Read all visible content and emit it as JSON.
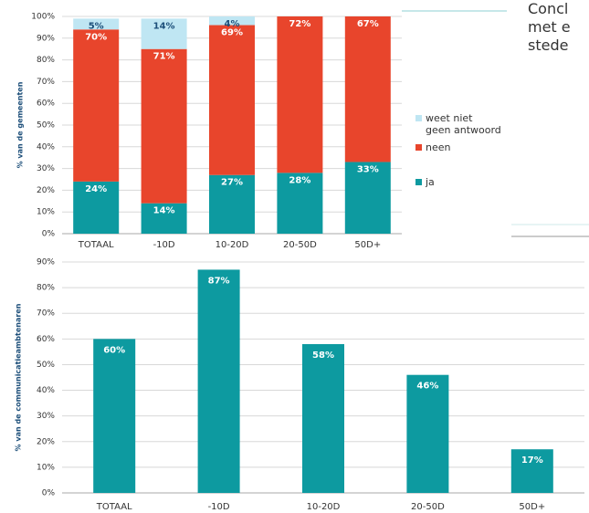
{
  "side_text": [
    "Concl",
    "met e",
    "stede"
  ],
  "chart_data": [
    {
      "type": "stacked_bar",
      "ylabel": "% van de gemeenten",
      "categories": [
        "TOTAAL",
        "-10D",
        "10-20D",
        "20-50D",
        "50D+"
      ],
      "series": [
        {
          "name": "ja",
          "color": "#0d9aa0",
          "label_color": "#ffffff",
          "values": [
            24,
            14,
            27,
            28,
            33
          ],
          "value_labels": [
            "24%",
            "14%",
            "27%",
            "28%",
            "33%"
          ]
        },
        {
          "name": "neen",
          "color": "#e8452c",
          "label_color": "#ffffff",
          "values": [
            70,
            71,
            69,
            72,
            67
          ],
          "value_labels": [
            "70%",
            "71%",
            "69%",
            "72%",
            "67%"
          ]
        },
        {
          "name": "weet niet\ngeen antwoord",
          "color": "#bfe6f3",
          "label_color": "#1d4f7a",
          "values": [
            5,
            14,
            4,
            0,
            0
          ],
          "value_labels": [
            "5%",
            "14%",
            "4%",
            null,
            null
          ]
        }
      ],
      "ylim": [
        0,
        100
      ],
      "yticks": [
        {
          "value": 0,
          "label": "0%"
        },
        {
          "value": 10,
          "label": "10%"
        },
        {
          "value": 20,
          "label": "20%"
        },
        {
          "value": 30,
          "label": "30%"
        },
        {
          "value": 40,
          "label": "40%"
        },
        {
          "value": 50,
          "label": "50%"
        },
        {
          "value": 60,
          "label": "60%"
        },
        {
          "value": 70,
          "label": "70%"
        },
        {
          "value": 80,
          "label": "80%"
        },
        {
          "value": 90,
          "label": "90%"
        },
        {
          "value": 100,
          "label": "100%"
        }
      ],
      "grid": true,
      "legend": "right"
    },
    {
      "type": "bar",
      "ylabel": "% van de communicatieambtenaren",
      "categories": [
        "TOTAAL",
        "-10D",
        "10-20D",
        "20-50D",
        "50D+"
      ],
      "values": [
        60,
        87,
        58,
        46,
        17
      ],
      "value_labels": [
        "60%",
        "87%",
        "58%",
        "46%",
        "17%"
      ],
      "color": "#0d9aa0",
      "ylim": [
        0,
        90
      ],
      "yticks": [
        {
          "value": 0,
          "label": "0%"
        },
        {
          "value": 10,
          "label": "10%"
        },
        {
          "value": 20,
          "label": "20%"
        },
        {
          "value": 30,
          "label": "30%"
        },
        {
          "value": 40,
          "label": "40%"
        },
        {
          "value": 50,
          "label": "50%"
        },
        {
          "value": 60,
          "label": "60%"
        },
        {
          "value": 70,
          "label": "70%"
        },
        {
          "value": 80,
          "label": "80%"
        },
        {
          "value": 90,
          "label": "90%"
        }
      ],
      "grid": true
    }
  ]
}
